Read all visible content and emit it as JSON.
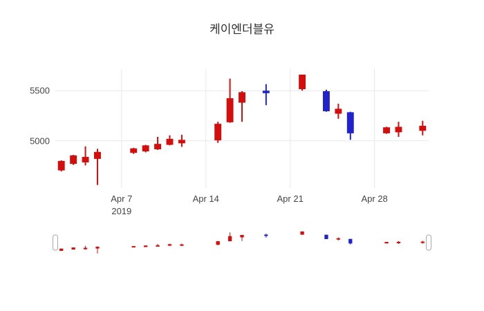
{
  "chart_data": {
    "type": "candlestick",
    "title": "케이엔더블유",
    "increasing_color": "#d40d0d",
    "decreasing_color": "#2222cc",
    "grid_color": "#e8e8e8",
    "text_color": "#444444",
    "title_color": "#2f2f2f",
    "grid": true,
    "legend": false,
    "rangeslider": {
      "visible": true,
      "handle_border_color": "#a8a8b0",
      "y_range": [
        4520,
        5700
      ]
    },
    "x_range": [
      "2019-04-01T12:00:00Z",
      "2019-05-02T12:00:00Z"
    ],
    "y_range": [
      4530,
      5715
    ],
    "x_ticks": [
      {
        "date": "2019-04-07",
        "label": "Apr 7",
        "year": "2019"
      },
      {
        "date": "2019-04-14",
        "label": "Apr 14"
      },
      {
        "date": "2019-04-21",
        "label": "Apr 21"
      },
      {
        "date": "2019-04-28",
        "label": "Apr 28"
      }
    ],
    "y_ticks": [
      5000,
      5500
    ],
    "candles": [
      {
        "date": "2019-04-02",
        "open": 4710,
        "high": 4805,
        "low": 4695,
        "close": 4795
      },
      {
        "date": "2019-04-03",
        "open": 4775,
        "high": 4860,
        "low": 4760,
        "close": 4850
      },
      {
        "date": "2019-04-04",
        "open": 4790,
        "high": 4945,
        "low": 4755,
        "close": 4835
      },
      {
        "date": "2019-04-05",
        "open": 4825,
        "high": 4920,
        "low": 4560,
        "close": 4885
      },
      {
        "date": "2019-04-08",
        "open": 4885,
        "high": 4930,
        "low": 4870,
        "close": 4920
      },
      {
        "date": "2019-04-09",
        "open": 4900,
        "high": 4960,
        "low": 4885,
        "close": 4950
      },
      {
        "date": "2019-04-10",
        "open": 4920,
        "high": 5040,
        "low": 4910,
        "close": 4965
      },
      {
        "date": "2019-04-11",
        "open": 4965,
        "high": 5055,
        "low": 4955,
        "close": 5015
      },
      {
        "date": "2019-04-12",
        "open": 4980,
        "high": 5060,
        "low": 4940,
        "close": 5005
      },
      {
        "date": "2019-04-15",
        "open": 5010,
        "high": 5190,
        "low": 4980,
        "close": 5165
      },
      {
        "date": "2019-04-16",
        "open": 5190,
        "high": 5620,
        "low": 5180,
        "close": 5420
      },
      {
        "date": "2019-04-17",
        "open": 5385,
        "high": 5495,
        "low": 5190,
        "close": 5480
      },
      {
        "date": "2019-04-19",
        "open": 5495,
        "high": 5565,
        "low": 5355,
        "close": 5480
      },
      {
        "date": "2019-04-22",
        "open": 5520,
        "high": 5660,
        "low": 5500,
        "close": 5655
      },
      {
        "date": "2019-04-24",
        "open": 5490,
        "high": 5510,
        "low": 5290,
        "close": 5300
      },
      {
        "date": "2019-04-25",
        "open": 5275,
        "high": 5370,
        "low": 5220,
        "close": 5315
      },
      {
        "date": "2019-04-26",
        "open": 5280,
        "high": 5290,
        "low": 5010,
        "close": 5080
      },
      {
        "date": "2019-04-29",
        "open": 5080,
        "high": 5140,
        "low": 5070,
        "close": 5130
      },
      {
        "date": "2019-04-30",
        "open": 5090,
        "high": 5190,
        "low": 5040,
        "close": 5135
      },
      {
        "date": "2019-05-02",
        "open": 5105,
        "high": 5200,
        "low": 5055,
        "close": 5145
      }
    ]
  }
}
